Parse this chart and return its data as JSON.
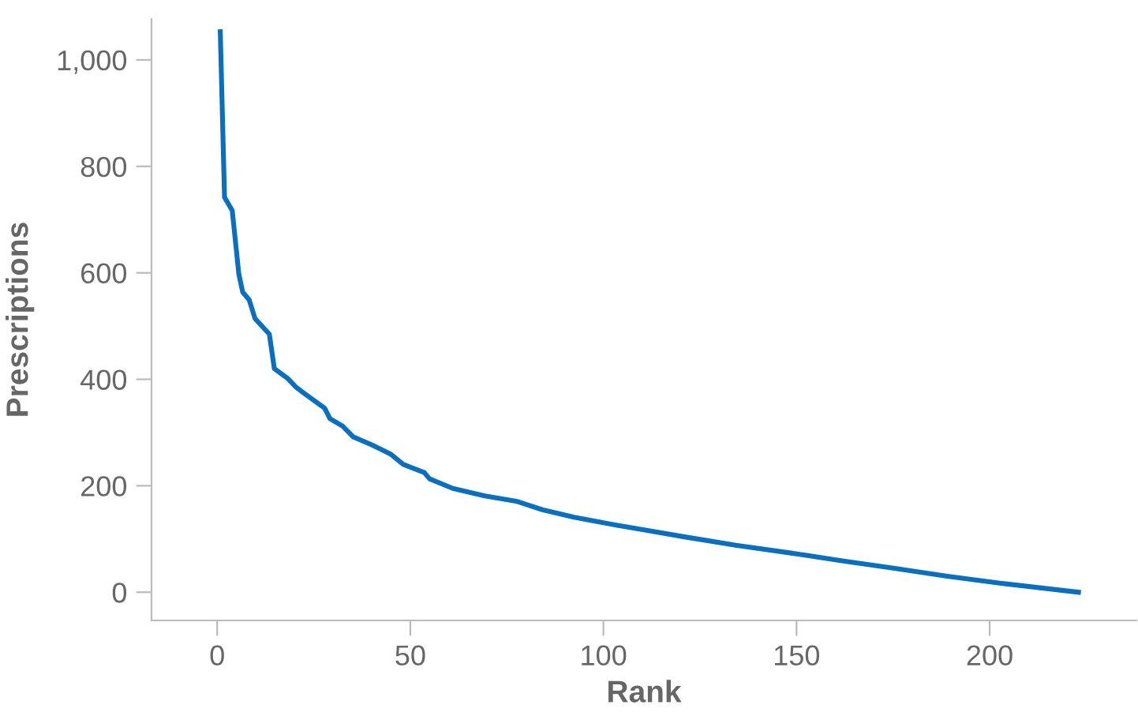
{
  "chart_data": {
    "type": "line",
    "xlabel": "Rank",
    "ylabel": "Prescriptions",
    "xlim": [
      -17,
      238
    ],
    "ylim": [
      -53,
      1077
    ],
    "xticks": [
      0,
      50,
      100,
      150,
      200
    ],
    "yticks": [
      0,
      200,
      400,
      600,
      800,
      {
        "value": 1000,
        "label": "1,000"
      }
    ],
    "grid": false,
    "legend": false,
    "marker": "none",
    "line_style": "solid",
    "series": [
      {
        "color": "#0a6fbf",
        "x": [
          0.8,
          1.9,
          3.9,
          5.6,
          6.6,
          8.3,
          9.8,
          13.5,
          14.8,
          18.2,
          20.3,
          23,
          27.8,
          29.2,
          32.5,
          35.2,
          40,
          44.8,
          48.2,
          53.6,
          55,
          61,
          69.3,
          77.4,
          84.2,
          92.4,
          103.3,
          111.4,
          121,
          134.6,
          148.2,
          161.8,
          175.4,
          189,
          202.6,
          223
        ],
        "values": [
          1053,
          742,
          717,
          598,
          564,
          549,
          514,
          485,
          420,
          402,
          386,
          371,
          346,
          326,
          312,
          292,
          277,
          260,
          240,
          225,
          213,
          195,
          181,
          171,
          155,
          141,
          126,
          116,
          104,
          88,
          74,
          59,
          45,
          30,
          17,
          0
        ]
      }
    ]
  }
}
